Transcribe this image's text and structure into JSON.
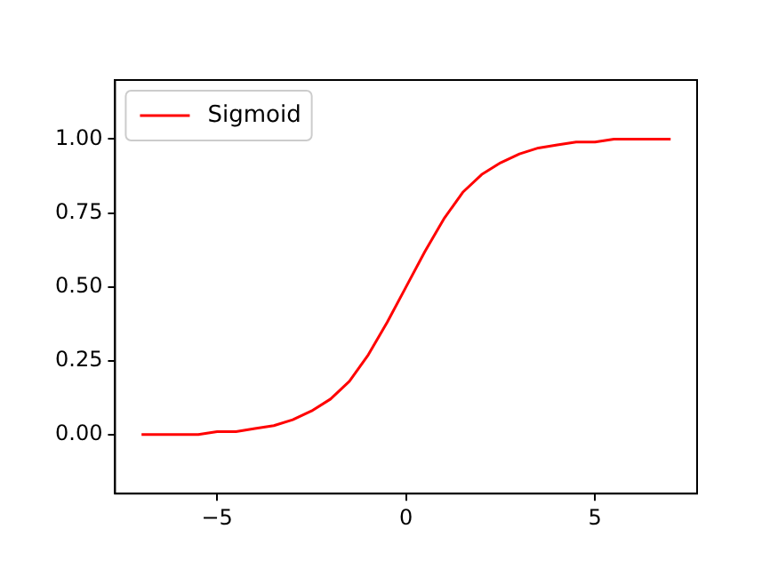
{
  "chart_data": {
    "type": "line",
    "x": [
      -7,
      -6.5,
      -6,
      -5.5,
      -5,
      -4.5,
      -4,
      -3.5,
      -3,
      -2.5,
      -2,
      -1.5,
      -1,
      -0.5,
      0,
      0.5,
      1,
      1.5,
      2,
      2.5,
      3,
      3.5,
      4,
      4.5,
      5,
      5.5,
      6,
      6.5,
      7
    ],
    "series": [
      {
        "name": "Sigmoid",
        "color": "#ff0000",
        "values": [
          0.0,
          0.0,
          0.0,
          0.0,
          0.01,
          0.01,
          0.02,
          0.03,
          0.05,
          0.08,
          0.12,
          0.18,
          0.27,
          0.38,
          0.5,
          0.62,
          0.73,
          0.82,
          0.88,
          0.92,
          0.95,
          0.97,
          0.98,
          0.99,
          0.99,
          1.0,
          1.0,
          1.0,
          1.0
        ]
      }
    ],
    "xlim": [
      -7.7,
      7.7
    ],
    "xticks": [
      {
        "value": -5,
        "label": "−5"
      },
      0,
      5
    ],
    "ylim": [
      -0.2,
      1.2
    ],
    "yticks": [
      {
        "value": 0,
        "label": "0.00"
      },
      {
        "value": 0.25,
        "label": "0.25"
      },
      {
        "value": 0.5,
        "label": "0.50"
      },
      {
        "value": 0.75,
        "label": "0.75"
      },
      {
        "value": 1,
        "label": "1.00"
      }
    ],
    "legend": "top left",
    "grid": false,
    "marker": "none",
    "line_style": "solid"
  }
}
